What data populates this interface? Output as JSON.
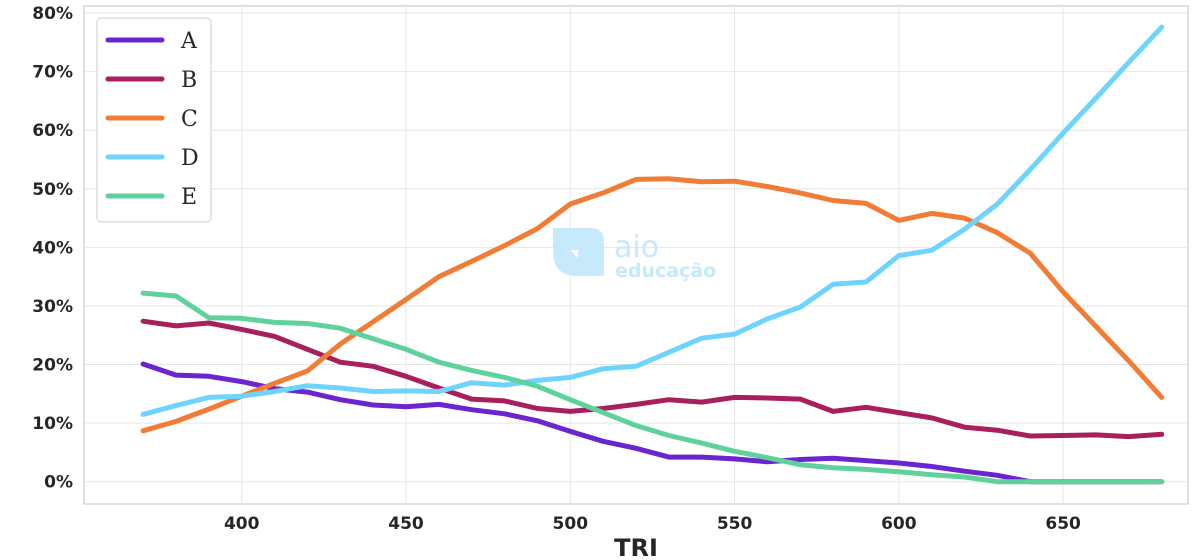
{
  "chart_data": {
    "type": "line",
    "xlabel": "TRI",
    "ylabel": "",
    "xlim": [
      352,
      688
    ],
    "ylim": [
      -3.8,
      81.2
    ],
    "x_ticks": [
      400,
      450,
      500,
      550,
      600,
      650
    ],
    "x_tick_labels": [
      "400",
      "450",
      "500",
      "550",
      "600",
      "650"
    ],
    "y_ticks": [
      0,
      10,
      20,
      30,
      40,
      50,
      60,
      70,
      80
    ],
    "y_tick_labels": [
      "0%",
      "10%",
      "20%",
      "30%",
      "40%",
      "50%",
      "60%",
      "70%",
      "80%"
    ],
    "grid": true,
    "legend_position": "top-left",
    "x": [
      370,
      380,
      390,
      400,
      410,
      420,
      430,
      440,
      450,
      460,
      470,
      480,
      490,
      500,
      510,
      520,
      530,
      540,
      550,
      560,
      570,
      580,
      590,
      600,
      610,
      620,
      630,
      640,
      650,
      660,
      670,
      680
    ],
    "series": [
      {
        "name": "A",
        "color": "#6a24d0",
        "values": [
          20.1,
          18.2,
          18.0,
          17.1,
          15.9,
          15.3,
          14.0,
          13.1,
          12.8,
          13.2,
          12.3,
          11.6,
          10.4,
          8.6,
          6.9,
          5.7,
          4.2,
          4.2,
          3.9,
          3.4,
          3.8,
          4.0,
          3.6,
          3.2,
          2.6,
          1.8,
          1.1,
          0.0,
          0.0,
          0.0,
          0.0,
          0.0
        ]
      },
      {
        "name": "B",
        "color": "#a91f5e",
        "values": [
          27.4,
          26.6,
          27.1,
          26.0,
          24.8,
          22.6,
          20.4,
          19.7,
          18.0,
          16.0,
          14.1,
          13.8,
          12.5,
          12.0,
          12.5,
          13.2,
          14.0,
          13.6,
          14.4,
          14.3,
          14.1,
          12.0,
          12.7,
          11.8,
          10.9,
          9.3,
          8.8,
          7.8,
          7.9,
          8.0,
          7.7,
          8.1
        ]
      },
      {
        "name": "C",
        "color": "#f07c35",
        "values": [
          8.7,
          10.3,
          12.4,
          14.6,
          16.8,
          18.9,
          23.5,
          27.3,
          31.1,
          35.0,
          37.6,
          40.3,
          43.2,
          47.4,
          49.3,
          51.6,
          51.7,
          51.2,
          51.3,
          50.4,
          49.3,
          48.0,
          47.5,
          44.6,
          45.8,
          45.0,
          42.5,
          39.0,
          32.4,
          26.5,
          20.6,
          14.4
        ]
      },
      {
        "name": "D",
        "color": "#6fd4fd",
        "values": [
          11.5,
          13.0,
          14.4,
          14.6,
          15.4,
          16.4,
          16.0,
          15.4,
          15.5,
          15.4,
          16.9,
          16.5,
          17.3,
          17.8,
          19.3,
          19.7,
          22.1,
          24.5,
          25.2,
          27.8,
          29.8,
          33.7,
          34.1,
          38.6,
          39.5,
          43.1,
          47.4,
          53.3,
          59.5,
          65.5,
          71.6,
          77.6
        ]
      },
      {
        "name": "E",
        "color": "#5fd19b",
        "values": [
          32.2,
          31.7,
          28.0,
          27.9,
          27.2,
          27.0,
          26.2,
          24.4,
          22.6,
          20.4,
          19.0,
          17.8,
          16.3,
          14.0,
          11.8,
          9.6,
          7.9,
          6.6,
          5.2,
          4.1,
          2.9,
          2.4,
          2.1,
          1.7,
          1.2,
          0.8,
          0.0,
          0.0,
          0.0,
          0.0,
          0.0,
          0.0
        ]
      }
    ]
  },
  "watermark": {
    "brand": "aio",
    "tagline": "educação"
  },
  "colors": {
    "grid": "#e6e6e6",
    "axes_frame": "#cccccc",
    "text": "#262626",
    "watermark": "#c4e9fb"
  }
}
